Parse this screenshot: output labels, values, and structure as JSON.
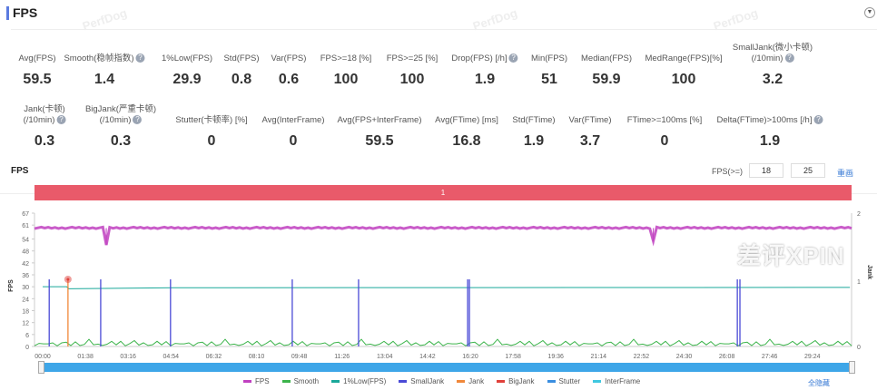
{
  "header": {
    "title": "FPS",
    "collapse_icon": "chevron-down-icon",
    "watermark": "PerfDog"
  },
  "stats_row1": [
    {
      "label": "Avg(FPS)",
      "value": "59.5",
      "help": false
    },
    {
      "label": "Smooth(稳帧指数)",
      "value": "1.4",
      "help": true
    },
    {
      "label": "1%Low(FPS)",
      "value": "29.9",
      "help": false
    },
    {
      "label": "Std(FPS)",
      "value": "0.8",
      "help": false
    },
    {
      "label": "Var(FPS)",
      "value": "0.6",
      "help": false
    },
    {
      "label": "FPS>=18 [%]",
      "value": "100",
      "help": false
    },
    {
      "label": "FPS>=25 [%]",
      "value": "100",
      "help": false
    },
    {
      "label": "Drop(FPS) [/h]",
      "value": "1.9",
      "help": true
    },
    {
      "label": "Min(FPS)",
      "value": "51",
      "help": false
    },
    {
      "label": "Median(FPS)",
      "value": "59.9",
      "help": false
    },
    {
      "label": "MedRange(FPS)[%]",
      "value": "100",
      "help": false
    },
    {
      "label": "SmallJank(微小卡顿)",
      "label2": "(/10min)",
      "value": "3.2",
      "help": true
    }
  ],
  "stats_row2": [
    {
      "label": "Jank(卡顿)",
      "label2": "(/10min)",
      "value": "0.3",
      "help": true
    },
    {
      "label": "BigJank(严重卡顿)",
      "label2": "(/10min)",
      "value": "0.3",
      "help": true
    },
    {
      "label": "Stutter(卡顿率) [%]",
      "value": "0",
      "help": false
    },
    {
      "label": "Avg(InterFrame)",
      "value": "0",
      "help": false
    },
    {
      "label": "Avg(FPS+InterFrame)",
      "value": "59.5",
      "help": false
    },
    {
      "label": "Avg(FTime) [ms]",
      "value": "16.8",
      "help": false
    },
    {
      "label": "Std(FTime)",
      "value": "1.9",
      "help": false
    },
    {
      "label": "Var(FTime)",
      "value": "3.7",
      "help": false
    },
    {
      "label": "FTime>=100ms [%]",
      "value": "0",
      "help": false
    },
    {
      "label": "Delta(FTime)>100ms [/h]",
      "value": "1.9",
      "help": true
    }
  ],
  "chart_section": {
    "title": "FPS",
    "threshold_label": "FPS(>=)",
    "threshold1": "18",
    "threshold2": "25",
    "redraw": "重画",
    "band_label": "1",
    "hide_all": "全隐藏"
  },
  "chart_data": {
    "type": "line",
    "ylabel": "FPS",
    "y2label": "Jank",
    "ylim": [
      0,
      67
    ],
    "y2lim": [
      0,
      2
    ],
    "yticks": [
      "67",
      "61",
      "54",
      "48",
      "42",
      "36",
      "30",
      "24",
      "18",
      "12",
      "6",
      "0"
    ],
    "y2ticks": [
      "2",
      "1",
      "0"
    ],
    "xticks": [
      "00:00",
      "01:38",
      "03:16",
      "04:54",
      "06:32",
      "08:10",
      "09:48",
      "11:26",
      "13:04",
      "14:42",
      "16:20",
      "17:58",
      "19:36",
      "21:14",
      "22:52",
      "24:30",
      "26:08",
      "27:46",
      "29:24"
    ],
    "x_seconds_range": [
      0,
      1850
    ],
    "series": [
      {
        "name": "FPS",
        "color": "#c040c0",
        "values_sampled": [
          59.6,
          59.9,
          58.8,
          60.1,
          59.4,
          51,
          59.7,
          60,
          59.2,
          59.9,
          60.1,
          59.5,
          59.8,
          58.9,
          60,
          59.7,
          59.3,
          60.1,
          59.8,
          59.6,
          59.9,
          60,
          59.4,
          59.8,
          60.1,
          59.5,
          59.7,
          59.9,
          60,
          59.2,
          59.8,
          60.1,
          59.6,
          59.9,
          59.7,
          60,
          59.4,
          59.8,
          59.9,
          60.1,
          59.5,
          59.7,
          59.9,
          60,
          59.8,
          53,
          59.6,
          59.9,
          60.1,
          59.7,
          59.8,
          59.5,
          60,
          59.9,
          59.7,
          60.1,
          59.6,
          59.8,
          59.9,
          60
        ]
      },
      {
        "name": "Smooth",
        "color": "#3cb44b",
        "values_sampled": [
          1.2,
          1.6,
          0.8,
          2.1,
          1.4,
          1.0,
          1.9,
          1.3,
          0.7,
          1.8,
          1.5,
          1.1,
          2.2,
          1.4,
          0.9,
          1.7,
          1.2,
          1.6,
          1.3,
          2.0,
          1.0,
          1.5,
          1.8,
          1.1,
          1.4,
          1.7,
          0.9,
          1.6,
          1.3,
          1.9
        ]
      },
      {
        "name": "1%Low(FPS)",
        "color": "#1aa89a",
        "points": [
          [
            0,
            30
          ],
          [
            55,
            30
          ],
          [
            60,
            29
          ],
          [
            300,
            29.5
          ],
          [
            1850,
            29.7
          ]
        ]
      },
      {
        "name": "SmallJank",
        "color": "#4a4ad6",
        "events_sec": [
          15,
          133,
          293,
          572,
          724,
          974,
          978,
          1592,
          1598
        ],
        "value": 1
      },
      {
        "name": "Jank",
        "color": "#f0883a",
        "events_sec": [
          58
        ],
        "value": 1
      },
      {
        "name": "BigJank",
        "color": "#e0403a",
        "events_sec": [
          58
        ],
        "value": 1
      },
      {
        "name": "Stutter",
        "color": "#3a8ee0"
      },
      {
        "name": "InterFrame",
        "color": "#40c8e0"
      }
    ]
  },
  "overlay_watermark": "差评XPIN"
}
